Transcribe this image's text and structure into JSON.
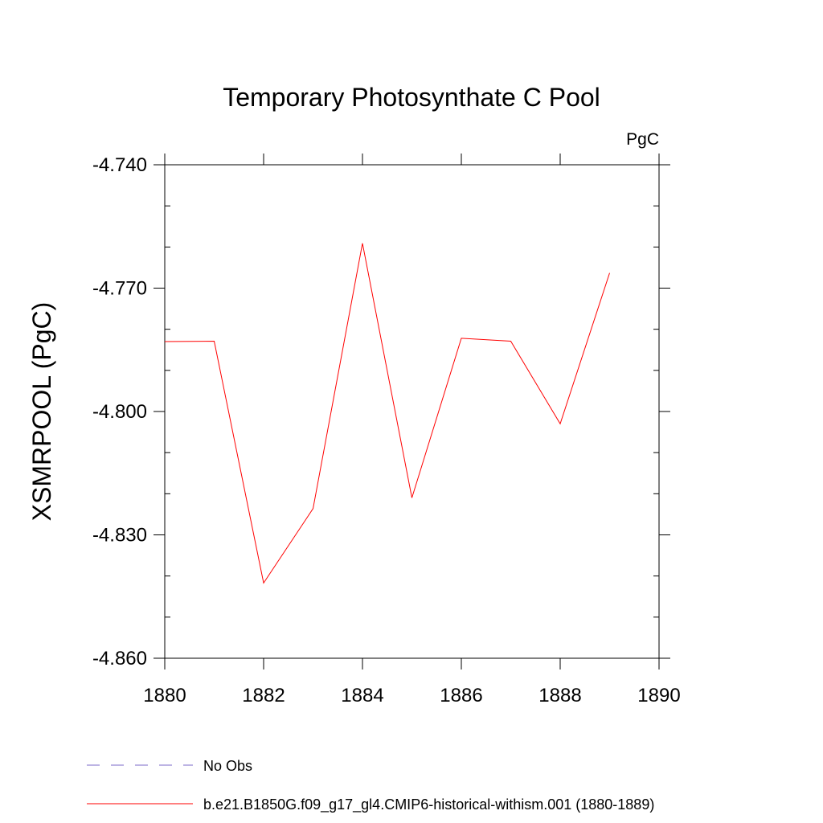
{
  "chart_data": {
    "type": "line",
    "title": "Temporary Photosynthate C Pool",
    "units": "PgC",
    "xlabel": "",
    "ylabel": "XSMRPOOL  (PgC)",
    "xlim": [
      1880,
      1890
    ],
    "ylim": [
      -4.86,
      -4.74
    ],
    "x_ticks": [
      1880,
      1882,
      1884,
      1886,
      1888,
      1890
    ],
    "x_tick_labels": [
      "1880",
      "1882",
      "1884",
      "1886",
      "1888",
      "1890"
    ],
    "y_ticks": [
      -4.74,
      -4.77,
      -4.8,
      -4.83,
      -4.86
    ],
    "y_tick_labels": [
      "-4.740",
      "-4.770",
      "-4.800",
      "-4.830",
      "-4.860"
    ],
    "grid": false,
    "legend_position": "bottom-left",
    "series": [
      {
        "name": "No Obs",
        "color": "#7b68c8",
        "dash": "dashed",
        "x": [],
        "values": []
      },
      {
        "name": "b.e21.B1850G.f09_g17_gl4.CMIP6-historical-withism.001 (1880-1889)",
        "color": "#ff0000",
        "dash": "solid",
        "x": [
          1880,
          1881,
          1882,
          1883,
          1884,
          1885,
          1886,
          1887,
          1888,
          1889
        ],
        "values": [
          -4.783,
          -4.7829,
          -4.8417,
          -4.8236,
          -4.7591,
          -4.821,
          -4.7822,
          -4.7829,
          -4.803,
          -4.7663
        ]
      }
    ]
  }
}
